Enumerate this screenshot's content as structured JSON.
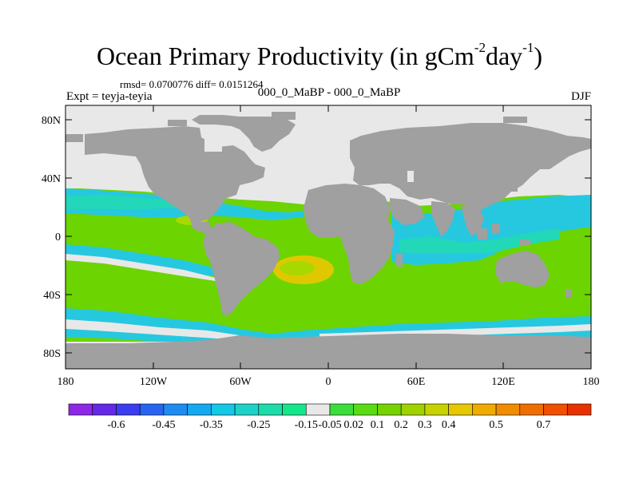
{
  "title": {
    "main": "Ocean Primary Productivity (in gCm",
    "exp1": "-2",
    "mid": "day",
    "exp2": "-1",
    "end": ")"
  },
  "stats": {
    "text": "rmsd= 0.0700776 diff= 0.0151264"
  },
  "left_label": "Expt = teyja-teyia",
  "center_label": "000_0_MaBP - 000_0_MaBP",
  "right_label": "DJF",
  "colors": {
    "land": "#a0a0a0",
    "ocean_base": "#6cd400",
    "no_change": "#e8e8e8",
    "neg_light": "#22d8b8",
    "neg_mid": "#26c8e0",
    "pos_light": "#a8d800",
    "pos_mid": "#e0c800"
  },
  "axes": {
    "y_ticks": [
      "80N",
      "40N",
      "0",
      "40S",
      "80S"
    ],
    "x_ticks": [
      "180",
      "120W",
      "60W",
      "0",
      "60E",
      "120E",
      "180"
    ]
  },
  "colorbar": {
    "colors": [
      "#8c28e6",
      "#6428e6",
      "#3c3cf0",
      "#2864f0",
      "#1e8cf0",
      "#14aaf0",
      "#14c8e6",
      "#1ed2c8",
      "#1edcaa",
      "#14e68c",
      "#e8e8e8",
      "#3cdc3c",
      "#5adc14",
      "#78d200",
      "#a0d200",
      "#c8d200",
      "#e6c800",
      "#f0aa00",
      "#f08c00",
      "#f06e00",
      "#f05000",
      "#e63200"
    ],
    "labels": [
      "-0.6",
      "-0.45",
      "-0.35",
      "-0.25",
      "-0.15",
      "-0.05",
      "0.02",
      "0.1",
      "0.2",
      "0.3",
      "0.4",
      "0.5",
      "0.7"
    ]
  }
}
